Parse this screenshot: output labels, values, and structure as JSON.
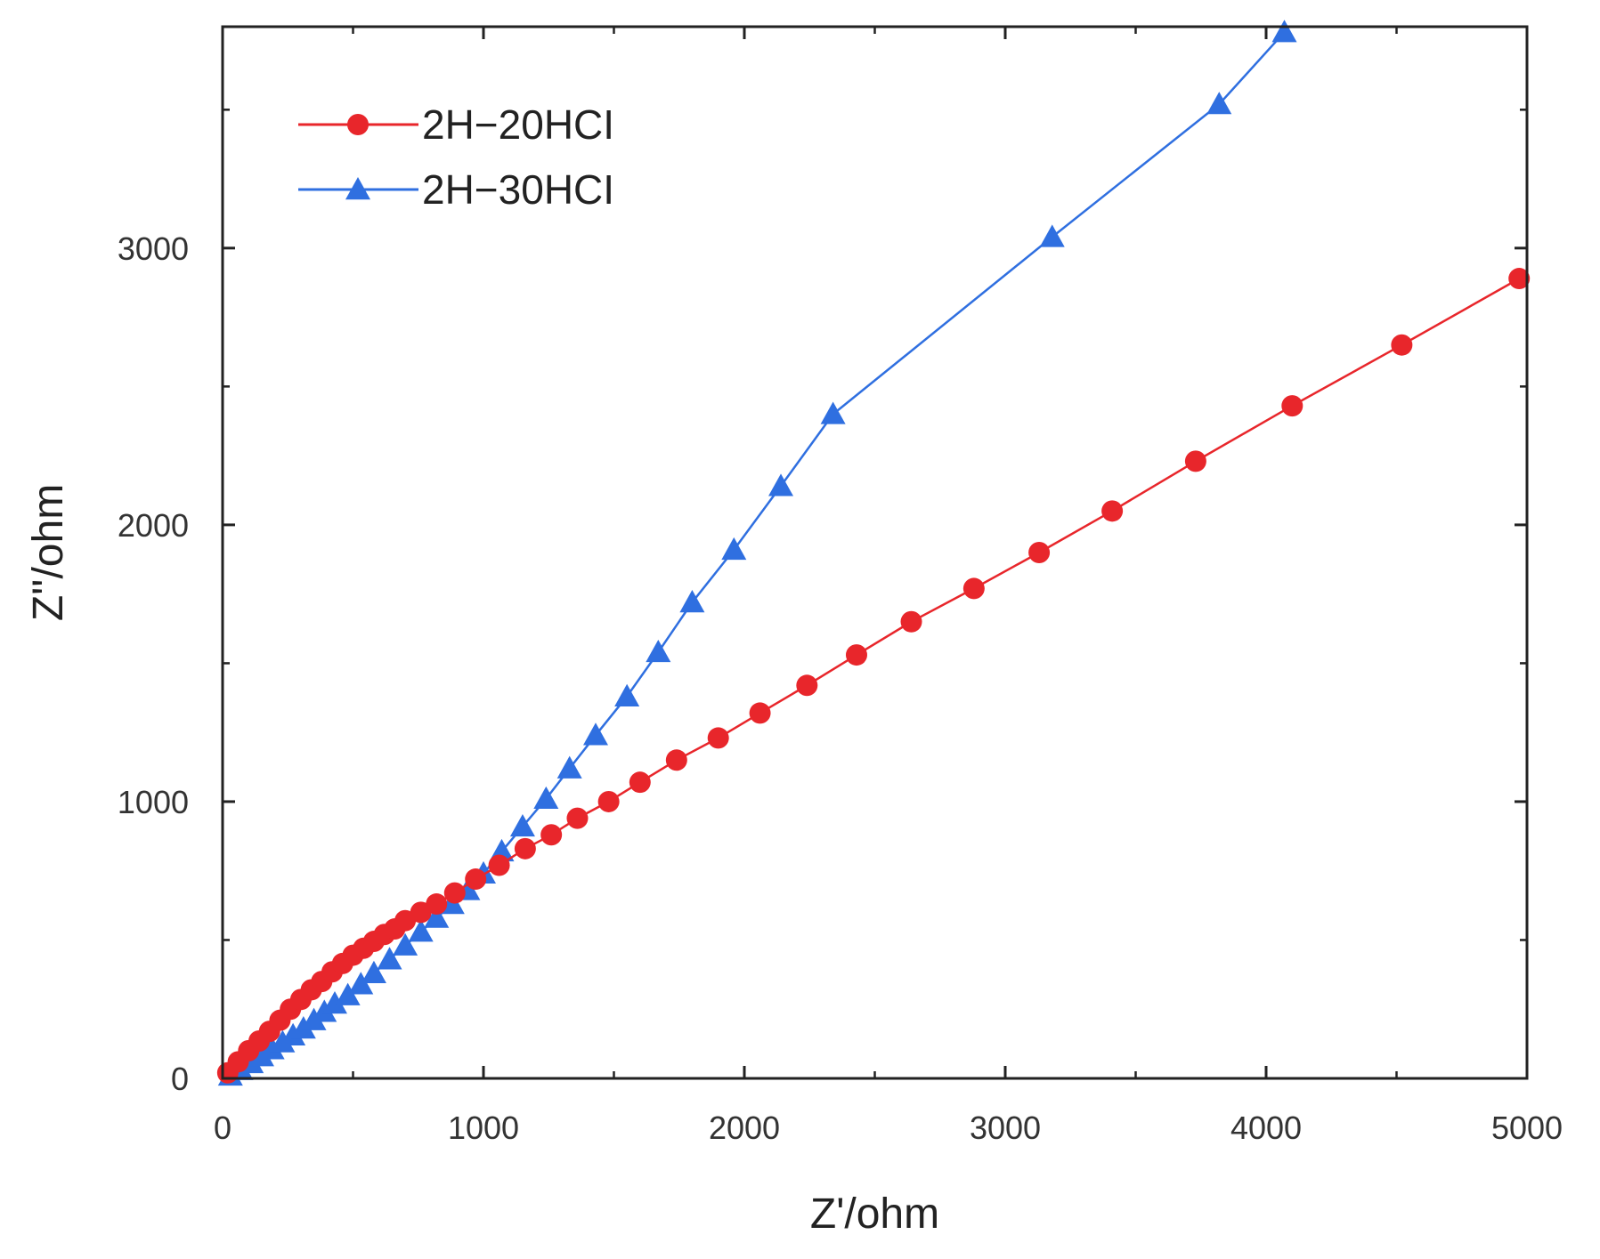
{
  "chart_data": {
    "type": "scatter",
    "title": "",
    "xlabel": "Z'/ohm",
    "ylabel": "Z''/ohm",
    "xlim": [
      0,
      5000
    ],
    "ylim": [
      0,
      3800
    ],
    "xticks": [
      0,
      1000,
      2000,
      3000,
      4000,
      5000
    ],
    "yticks": [
      0,
      1000,
      2000,
      3000
    ],
    "x_tick_labels": [
      "0",
      "1000",
      "2000",
      "3000",
      "4000",
      "5000"
    ],
    "y_tick_labels": [
      "0",
      "1000",
      "2000",
      "3000"
    ],
    "legend_position": "top-left",
    "series": [
      {
        "name": "2H-20HCl",
        "label": "2H−20HCI",
        "color": "#e8262b",
        "marker": "circle",
        "points": [
          [
            20,
            20
          ],
          [
            60,
            60
          ],
          [
            100,
            100
          ],
          [
            140,
            135
          ],
          [
            180,
            170
          ],
          [
            220,
            210
          ],
          [
            260,
            250
          ],
          [
            300,
            285
          ],
          [
            340,
            320
          ],
          [
            380,
            350
          ],
          [
            420,
            385
          ],
          [
            460,
            415
          ],
          [
            500,
            445
          ],
          [
            540,
            470
          ],
          [
            580,
            495
          ],
          [
            620,
            520
          ],
          [
            660,
            540
          ],
          [
            700,
            570
          ],
          [
            760,
            600
          ],
          [
            820,
            630
          ],
          [
            890,
            670
          ],
          [
            970,
            720
          ],
          [
            1060,
            770
          ],
          [
            1160,
            830
          ],
          [
            1260,
            880
          ],
          [
            1360,
            940
          ],
          [
            1480,
            1000
          ],
          [
            1600,
            1070
          ],
          [
            1740,
            1150
          ],
          [
            1900,
            1230
          ],
          [
            2060,
            1320
          ],
          [
            2240,
            1420
          ],
          [
            2430,
            1530
          ],
          [
            2640,
            1650
          ],
          [
            2880,
            1770
          ],
          [
            3130,
            1900
          ],
          [
            3410,
            2050
          ],
          [
            3730,
            2230
          ],
          [
            4100,
            2430
          ],
          [
            4520,
            2650
          ],
          [
            4970,
            2890
          ]
        ]
      },
      {
        "name": "2H-30HCl",
        "label": "2H−30HCI",
        "color": "#2f6fe0",
        "marker": "triangle",
        "points": [
          [
            30,
            10
          ],
          [
            70,
            30
          ],
          [
            110,
            55
          ],
          [
            150,
            80
          ],
          [
            190,
            105
          ],
          [
            230,
            130
          ],
          [
            270,
            155
          ],
          [
            310,
            180
          ],
          [
            350,
            210
          ],
          [
            390,
            240
          ],
          [
            430,
            270
          ],
          [
            480,
            300
          ],
          [
            530,
            340
          ],
          [
            580,
            380
          ],
          [
            640,
            430
          ],
          [
            700,
            480
          ],
          [
            760,
            530
          ],
          [
            820,
            580
          ],
          [
            880,
            630
          ],
          [
            940,
            680
          ],
          [
            1000,
            740
          ],
          [
            1070,
            820
          ],
          [
            1150,
            910
          ],
          [
            1240,
            1010
          ],
          [
            1330,
            1120
          ],
          [
            1430,
            1240
          ],
          [
            1550,
            1380
          ],
          [
            1670,
            1540
          ],
          [
            1800,
            1720
          ],
          [
            1960,
            1910
          ],
          [
            2140,
            2140
          ],
          [
            2340,
            2400
          ],
          [
            3180,
            3040
          ],
          [
            3820,
            3520
          ],
          [
            4070,
            3780
          ]
        ]
      }
    ]
  }
}
